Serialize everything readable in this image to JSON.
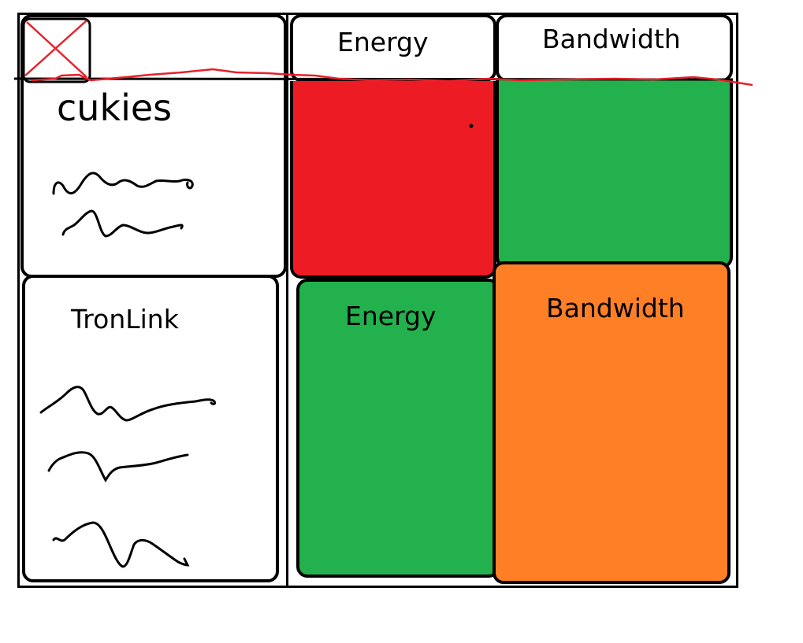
{
  "colors": {
    "red": "#ED1C24",
    "green": "#22B14C",
    "orange": "#FF7F27",
    "ink": "#000000",
    "annotation": "#E8202A"
  },
  "header": {
    "energy_label": "Energy",
    "bandwidth_label": "Bandwidth"
  },
  "cookies_panel": {
    "title": "cukies"
  },
  "tronlink_panel": {
    "title": "TronLink"
  },
  "resource_tiles": {
    "energy_label": "Energy",
    "bandwidth_label": "Bandwidth"
  },
  "icons": {
    "logo_placeholder": "crossed-out-box-icon"
  }
}
